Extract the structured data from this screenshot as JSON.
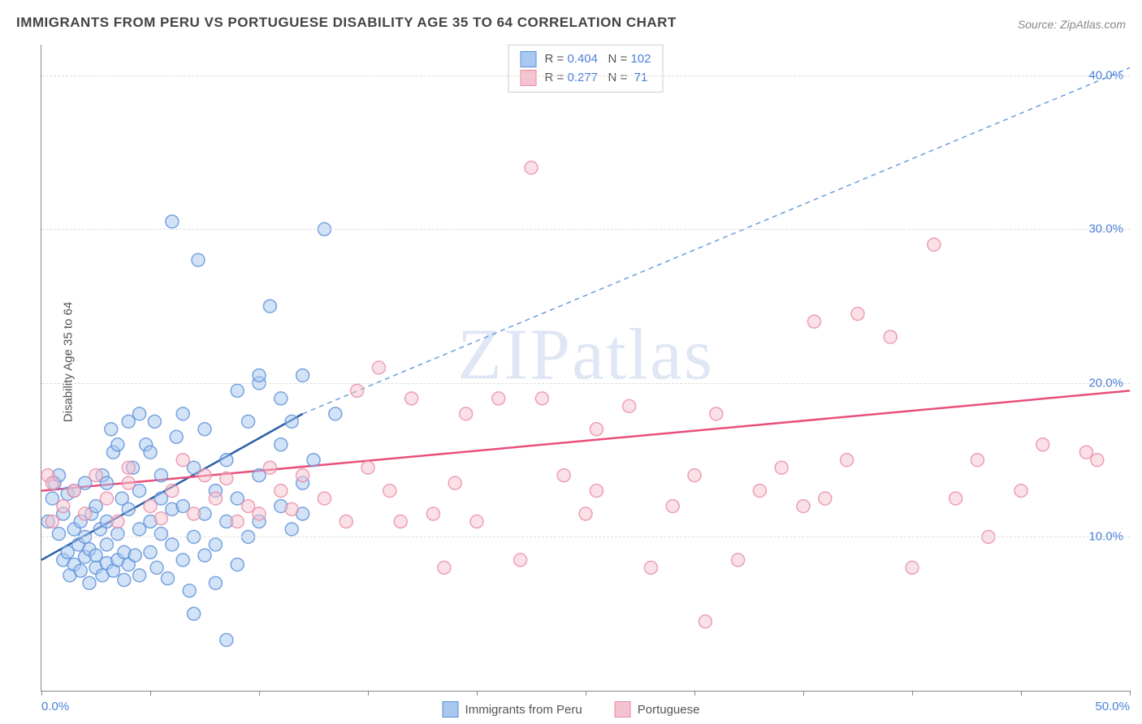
{
  "title": "IMMIGRANTS FROM PERU VS PORTUGUESE DISABILITY AGE 35 TO 64 CORRELATION CHART",
  "source_label": "Source: ",
  "source_site": "ZipAtlas.com",
  "ylabel": "Disability Age 35 to 64",
  "watermark": "ZIPatlas",
  "chart": {
    "type": "scatter",
    "background_color": "#ffffff",
    "grid_color": "#dddddd",
    "axis_color": "#888888",
    "tick_label_color": "#4a7fd8",
    "xlim": [
      0,
      50
    ],
    "ylim": [
      0,
      42
    ],
    "xticks": [
      0,
      5,
      10,
      15,
      20,
      25,
      30,
      35,
      40,
      45,
      50
    ],
    "xtick_labels": {
      "0": "0.0%",
      "50": "50.0%"
    },
    "yticks": [
      10,
      20,
      30,
      40
    ],
    "ytick_labels": {
      "10": "10.0%",
      "20": "20.0%",
      "30": "30.0%",
      "40": "40.0%"
    },
    "marker_radius": 8,
    "marker_opacity": 0.5,
    "marker_stroke_width": 1.5,
    "series": [
      {
        "label": "Immigrants from Peru",
        "fill": "#a8c8f0",
        "stroke": "#5a8fd8",
        "R": "0.404",
        "N": "102",
        "trend": {
          "x1": 0,
          "y1": 8.5,
          "x2": 12,
          "y2": 18,
          "color": "#2d5fa8",
          "width": 2.5,
          "dash": "none"
        },
        "trend_ext": {
          "x1": 12,
          "y1": 18,
          "x2": 50,
          "y2": 40.5,
          "color": "#6a9edb",
          "width": 1.5,
          "dash": "6,5"
        },
        "points": [
          [
            0.3,
            11
          ],
          [
            0.5,
            12.5
          ],
          [
            0.6,
            13.5
          ],
          [
            0.8,
            10.2
          ],
          [
            0.8,
            14
          ],
          [
            1.0,
            8.5
          ],
          [
            1.0,
            11.5
          ],
          [
            1.2,
            9
          ],
          [
            1.2,
            12.8
          ],
          [
            1.3,
            7.5
          ],
          [
            1.5,
            8.2
          ],
          [
            1.5,
            10.5
          ],
          [
            1.5,
            13
          ],
          [
            1.7,
            9.5
          ],
          [
            1.8,
            11
          ],
          [
            1.8,
            7.8
          ],
          [
            2.0,
            8.7
          ],
          [
            2.0,
            10
          ],
          [
            2.0,
            13.5
          ],
          [
            2.2,
            7
          ],
          [
            2.2,
            9.2
          ],
          [
            2.3,
            11.5
          ],
          [
            2.5,
            8
          ],
          [
            2.5,
            8.8
          ],
          [
            2.5,
            12
          ],
          [
            2.7,
            10.5
          ],
          [
            2.8,
            7.5
          ],
          [
            2.8,
            14
          ],
          [
            3.0,
            8.3
          ],
          [
            3.0,
            9.5
          ],
          [
            3.0,
            11
          ],
          [
            3.0,
            13.5
          ],
          [
            3.2,
            17
          ],
          [
            3.3,
            7.8
          ],
          [
            3.3,
            15.5
          ],
          [
            3.5,
            8.5
          ],
          [
            3.5,
            10.2
          ],
          [
            3.5,
            16
          ],
          [
            3.7,
            12.5
          ],
          [
            3.8,
            7.2
          ],
          [
            3.8,
            9
          ],
          [
            4.0,
            8.2
          ],
          [
            4.0,
            11.8
          ],
          [
            4.0,
            17.5
          ],
          [
            4.2,
            14.5
          ],
          [
            4.3,
            8.8
          ],
          [
            4.5,
            7.5
          ],
          [
            4.5,
            10.5
          ],
          [
            4.5,
            13
          ],
          [
            4.5,
            18
          ],
          [
            4.8,
            16
          ],
          [
            5.0,
            9
          ],
          [
            5.0,
            11
          ],
          [
            5.0,
            15.5
          ],
          [
            5.2,
            17.5
          ],
          [
            5.3,
            8
          ],
          [
            5.5,
            10.2
          ],
          [
            5.5,
            12.5
          ],
          [
            5.5,
            14
          ],
          [
            5.8,
            7.3
          ],
          [
            6.0,
            9.5
          ],
          [
            6.0,
            11.8
          ],
          [
            6.0,
            30.5
          ],
          [
            6.2,
            16.5
          ],
          [
            6.5,
            8.5
          ],
          [
            6.5,
            12
          ],
          [
            6.5,
            18
          ],
          [
            6.8,
            6.5
          ],
          [
            7.0,
            10
          ],
          [
            7.0,
            14.5
          ],
          [
            7.0,
            5
          ],
          [
            7.2,
            28
          ],
          [
            7.5,
            8.8
          ],
          [
            7.5,
            11.5
          ],
          [
            7.5,
            17
          ],
          [
            8.0,
            7
          ],
          [
            8.0,
            9.5
          ],
          [
            8.0,
            13
          ],
          [
            8.5,
            3.3
          ],
          [
            8.5,
            11
          ],
          [
            8.5,
            15
          ],
          [
            9.0,
            8.2
          ],
          [
            9.0,
            12.5
          ],
          [
            9.0,
            19.5
          ],
          [
            9.5,
            10
          ],
          [
            9.5,
            17.5
          ],
          [
            10,
            11
          ],
          [
            10,
            14
          ],
          [
            10,
            20
          ],
          [
            10,
            20.5
          ],
          [
            10.5,
            25
          ],
          [
            11,
            12
          ],
          [
            11,
            16
          ],
          [
            11,
            19
          ],
          [
            11.5,
            10.5
          ],
          [
            11.5,
            17.5
          ],
          [
            12,
            13.5
          ],
          [
            12,
            20.5
          ],
          [
            12,
            11.5
          ],
          [
            12.5,
            15
          ],
          [
            13,
            30
          ],
          [
            13.5,
            18
          ]
        ]
      },
      {
        "label": "Portuguese",
        "fill": "#f5c3cf",
        "stroke": "#e88ba5",
        "R": "0.277",
        "N": "71",
        "trend": {
          "x1": 0,
          "y1": 13,
          "x2": 50,
          "y2": 19.5,
          "color": "#e94f7a",
          "width": 2.5,
          "dash": "none"
        },
        "points": [
          [
            0.3,
            14
          ],
          [
            0.5,
            11
          ],
          [
            0.5,
            13.5
          ],
          [
            1,
            12
          ],
          [
            1.5,
            13
          ],
          [
            2,
            11.5
          ],
          [
            2.5,
            14
          ],
          [
            3,
            12.5
          ],
          [
            3.5,
            11
          ],
          [
            4,
            13.5
          ],
          [
            4,
            14.5
          ],
          [
            5,
            12
          ],
          [
            5.5,
            11.2
          ],
          [
            6,
            13
          ],
          [
            6.5,
            15
          ],
          [
            7,
            11.5
          ],
          [
            7.5,
            14
          ],
          [
            8,
            12.5
          ],
          [
            8.5,
            13.8
          ],
          [
            9,
            11
          ],
          [
            9.5,
            12
          ],
          [
            10,
            11.5
          ],
          [
            10.5,
            14.5
          ],
          [
            11,
            13
          ],
          [
            11.5,
            11.8
          ],
          [
            12,
            14
          ],
          [
            13,
            12.5
          ],
          [
            14,
            11
          ],
          [
            14.5,
            19.5
          ],
          [
            15,
            14.5
          ],
          [
            15.5,
            21
          ],
          [
            16,
            13
          ],
          [
            16.5,
            11
          ],
          [
            17,
            19
          ],
          [
            18,
            11.5
          ],
          [
            18.5,
            8
          ],
          [
            19,
            13.5
          ],
          [
            19.5,
            18
          ],
          [
            20,
            11
          ],
          [
            21,
            19
          ],
          [
            22,
            8.5
          ],
          [
            22.5,
            34
          ],
          [
            23,
            19
          ],
          [
            24,
            14
          ],
          [
            25,
            11.5
          ],
          [
            25.5,
            13
          ],
          [
            25.5,
            17
          ],
          [
            27,
            18.5
          ],
          [
            28,
            8
          ],
          [
            29,
            12
          ],
          [
            30,
            14
          ],
          [
            30.5,
            4.5
          ],
          [
            31,
            18
          ],
          [
            32,
            8.5
          ],
          [
            33,
            13
          ],
          [
            34,
            14.5
          ],
          [
            35,
            12
          ],
          [
            35.5,
            24
          ],
          [
            36,
            12.5
          ],
          [
            37,
            15
          ],
          [
            37.5,
            24.5
          ],
          [
            39,
            23
          ],
          [
            40,
            8
          ],
          [
            41,
            29
          ],
          [
            42,
            12.5
          ],
          [
            43,
            15
          ],
          [
            43.5,
            10
          ],
          [
            45,
            13
          ],
          [
            46,
            16
          ],
          [
            48,
            15.5
          ],
          [
            48.5,
            15
          ]
        ]
      }
    ]
  },
  "stats_legend": {
    "r_label": "R =",
    "n_label": "N ="
  },
  "bottom_legend": {
    "items": [
      "Immigrants from Peru",
      "Portuguese"
    ]
  }
}
